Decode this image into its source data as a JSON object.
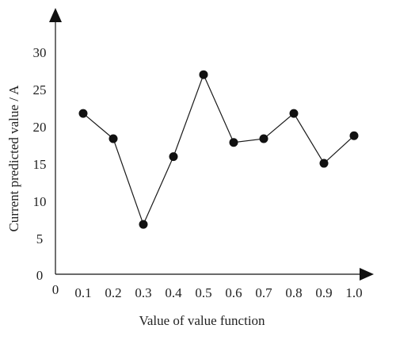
{
  "chart_data": {
    "type": "line",
    "xlabel": "Value of value function",
    "ylabel": "Current predicted value / A",
    "x_ticks": [
      "0.1",
      "0.2",
      "0.3",
      "0.4",
      "0.5",
      "0.6",
      "0.7",
      "0.8",
      "0.9",
      "1.0"
    ],
    "y_ticks": [
      "0",
      "5",
      "10",
      "15",
      "20",
      "25",
      "30"
    ],
    "origin_label": "0",
    "xlim": [
      0,
      1.05
    ],
    "ylim": [
      0,
      33
    ],
    "grid": false,
    "marker": "filled-circle",
    "series": [
      {
        "x": [
          0.1,
          0.2,
          0.3,
          0.4,
          0.5,
          0.6,
          0.7,
          0.8,
          0.9,
          1.0
        ],
        "values": [
          21.8,
          18.4,
          6.9,
          16.0,
          27.0,
          17.9,
          18.4,
          21.8,
          15.1,
          18.8
        ]
      }
    ],
    "colors": {
      "line": "#1a1a1a",
      "marker": "#111111",
      "axis": "#111111"
    }
  }
}
